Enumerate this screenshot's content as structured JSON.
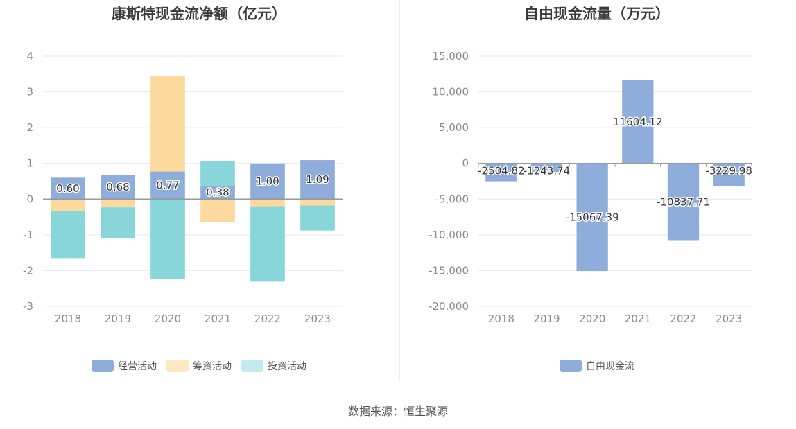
{
  "source": "数据来源：恒生聚源",
  "colors": {
    "operating": "#8EADDA",
    "financing": "#FDD99E",
    "investing": "#89D6DA",
    "free": "#8EADDA",
    "axis": "#999999",
    "grid": "#E6E9F0"
  },
  "chart_data": [
    {
      "type": "bar",
      "stacked": true,
      "title": "康斯特现金流净额（亿元）",
      "categories": [
        "2018",
        "2019",
        "2020",
        "2021",
        "2022",
        "2023"
      ],
      "yticks": [
        "4",
        "3",
        "2",
        "1",
        "0",
        "-1",
        "-2",
        "-3"
      ],
      "ylim": [
        -3,
        4
      ],
      "grid": true,
      "legend_position": "bottom",
      "series": [
        {
          "name": "经营活动",
          "values": [
            0.6,
            0.68,
            0.77,
            0.38,
            1.0,
            1.09
          ],
          "labels": [
            "0.60",
            "0.68",
            "0.77",
            "0.38",
            "1.00",
            "1.09"
          ]
        },
        {
          "name": "筹资活动",
          "values": [
            -0.33,
            -0.23,
            2.68,
            -0.65,
            -0.2,
            -0.18
          ]
        },
        {
          "name": "投资活动",
          "values": [
            -1.32,
            -0.87,
            -2.23,
            0.68,
            -2.11,
            -0.7
          ]
        }
      ]
    },
    {
      "type": "bar",
      "title": "自由现金流量（万元）",
      "categories": [
        "2018",
        "2019",
        "2020",
        "2021",
        "2022",
        "2023"
      ],
      "yticks": [
        "15,000",
        "10,000",
        "5,000",
        "0",
        "-5,000",
        "-10,000",
        "-15,000",
        "-20,000"
      ],
      "ylim": [
        -20000,
        15000
      ],
      "grid": true,
      "legend_position": "bottom",
      "series": [
        {
          "name": "自由现金流",
          "values": [
            -2504.82,
            -1243.74,
            -15067.39,
            11604.12,
            -10837.71,
            -3229.98
          ],
          "labels": [
            "-2504.82",
            "-1243.74",
            "-15067.39",
            "11604.12",
            "-10837.71",
            "-3229.98"
          ]
        }
      ]
    }
  ]
}
